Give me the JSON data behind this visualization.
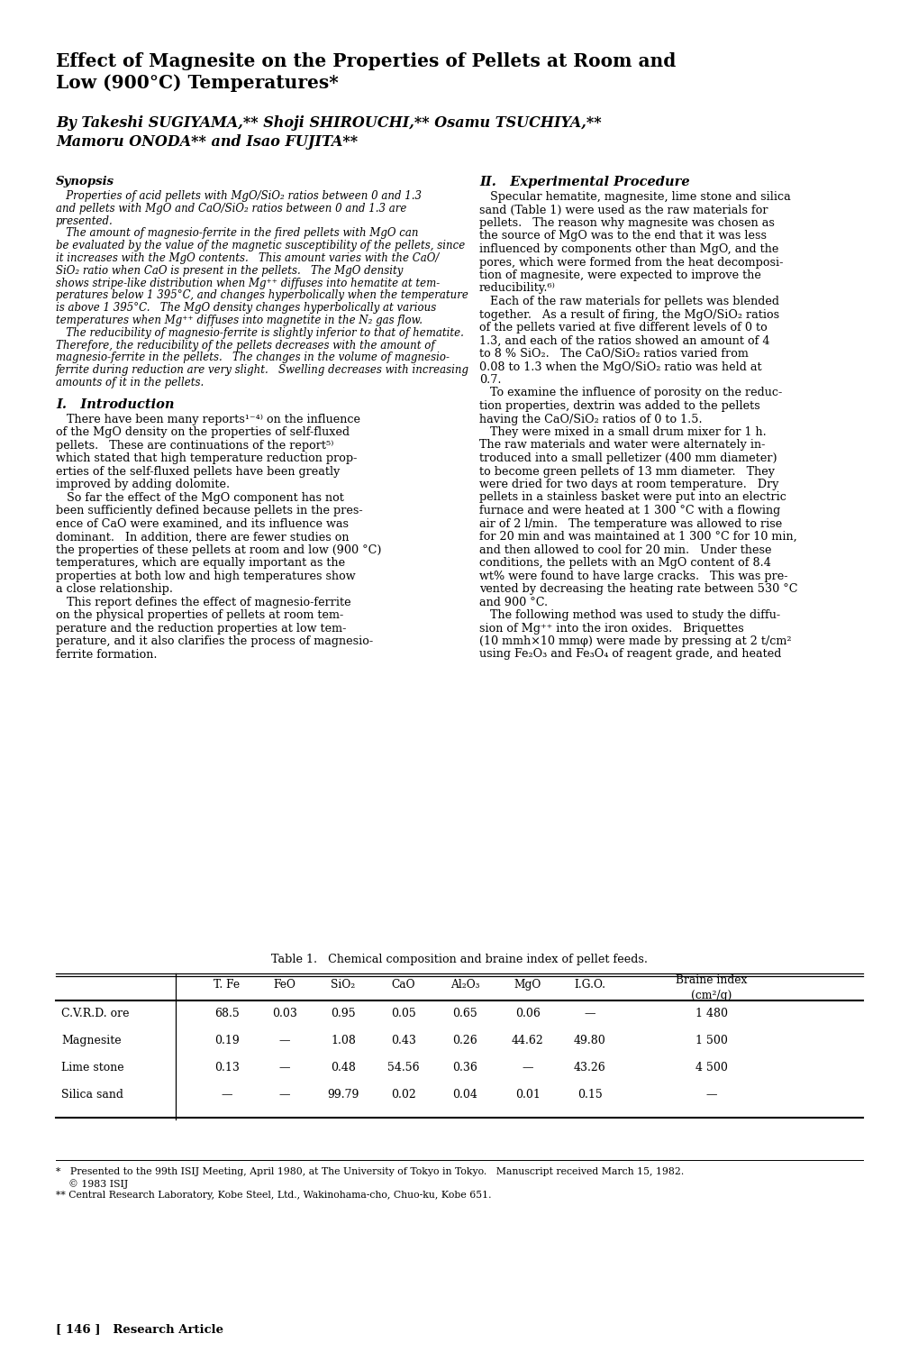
{
  "title_line1": "Effect of Magnesite on the Properties of Pellets at Room and",
  "title_line2": "Low (900°C) Temperatures*",
  "authors_line1": "By Takeshi SUGIYAMA,** Shoji SHIROUCHI,** Osamu TSUCHIYA,**",
  "authors_line2": "Mamoru ONODA** and Isao FUJITA**",
  "synopsis_title": "Synopsis",
  "synopsis_lines": [
    "   Properties of acid pellets with MgO/SiO₂ ratios between 0 and 1.3",
    "and pellets with MgO and CaO/SiO₂ ratios between 0 and 1.3 are",
    "presented.",
    "   The amount of magnesio-ferrite in the fired pellets with MgO can",
    "be evaluated by the value of the magnetic susceptibility of the pellets, since",
    "it increases with the MgO contents.   This amount varies with the CaO/",
    "SiO₂ ratio when CaO is present in the pellets.   The MgO density",
    "shows stripe-like distribution when Mg⁺⁺ diffuses into hematite at tem-",
    "peratures below 1 395°C, and changes hyperbolically when the temperature",
    "is above 1 395°C.   The MgO density changes hyperbolically at various",
    "temperatures when Mg⁺⁺ diffuses into magnetite in the N₂ gas flow.",
    "   The reducibility of magnesio-ferrite is slightly inferior to that of hematite.",
    "Therefore, the reducibility of the pellets decreases with the amount of",
    "magnesio-ferrite in the pellets.   The changes in the volume of magnesio-",
    "ferrite during reduction are very slight.   Swelling decreases with increasing",
    "amounts of it in the pellets."
  ],
  "sec1_title": "I.   Introduction",
  "sec1_lines": [
    "   There have been many reports¹⁻⁴⁾ on the influence",
    "of the MgO density on the properties of self-fluxed",
    "pellets.   These are continuations of the report⁵⁾",
    "which stated that high temperature reduction prop-",
    "erties of the self-fluxed pellets have been greatly",
    "improved by adding dolomite.",
    "   So far the effect of the MgO component has not",
    "been sufficiently defined because pellets in the pres-",
    "ence of CaO were examined, and its influence was",
    "dominant.   In addition, there are fewer studies on",
    "the properties of these pellets at room and low (900 °C)",
    "temperatures, which are equally important as the",
    "properties at both low and high temperatures show",
    "a close relationship.",
    "   This report defines the effect of magnesio-ferrite",
    "on the physical properties of pellets at room tem-",
    "perature and the reduction properties at low tem-",
    "perature, and it also clarifies the process of magnesio-",
    "ferrite formation."
  ],
  "sec2_title": "II.   Experimental Procedure",
  "sec2_lines": [
    "   Specular hematite, magnesite, lime stone and silica",
    "sand (Table 1) were used as the raw materials for",
    "pellets.   The reason why magnesite was chosen as",
    "the source of MgO was to the end that it was less",
    "influenced by components other than MgO, and the",
    "pores, which were formed from the heat decomposi-",
    "tion of magnesite, were expected to improve the",
    "reducibility.⁶⁾",
    "   Each of the raw materials for pellets was blended",
    "together.   As a result of firing, the MgO/SiO₂ ratios",
    "of the pellets varied at five different levels of 0 to",
    "1.3, and each of the ratios showed an amount of 4",
    "to 8 % SiO₂.   The CaO/SiO₂ ratios varied from",
    "0.08 to 1.3 when the MgO/SiO₂ ratio was held at",
    "0.7.",
    "   To examine the influence of porosity on the reduc-",
    "tion properties, dextrin was added to the pellets",
    "having the CaO/SiO₂ ratios of 0 to 1.5.",
    "   They were mixed in a small drum mixer for 1 h.",
    "The raw materials and water were alternately in-",
    "troduced into a small pelletizer (400 mm diameter)",
    "to become green pellets of 13 mm diameter.   They",
    "were dried for two days at room temperature.   Dry",
    "pellets in a stainless basket were put into an electric",
    "furnace and were heated at 1 300 °C with a flowing",
    "air of 2 l/min.   The temperature was allowed to rise",
    "for 20 min and was maintained at 1 300 °C for 10 min,",
    "and then allowed to cool for 20 min.   Under these",
    "conditions, the pellets with an MgO content of 8.4",
    "wt% were found to have large cracks.   This was pre-",
    "vented by decreasing the heating rate between 530 °C",
    "and 900 °C.",
    "   The following method was used to study the diffu-",
    "sion of Mg⁺⁺ into the iron oxides.   Briquettes",
    "(10 mmh×10 mmφ) were made by pressing at 2 t/cm²",
    "using Fe₂O₃ and Fe₃O₄ of reagent grade, and heated"
  ],
  "table_title": "Table 1.   Chemical composition and braine index of pellet feeds.",
  "table_col_headers": [
    "T. Fe",
    "FeO",
    "SiO₂",
    "CaO",
    "Al₂O₃",
    "MgO",
    "I.G.O.",
    "Braine index\n(cm²/g)"
  ],
  "table_rows": [
    [
      "C.V.R.D. ore",
      "68.5",
      "0.03",
      "0.95",
      "0.05",
      "0.65",
      "0.06",
      "—",
      "1 480"
    ],
    [
      "Magnesite",
      "0.19",
      "—",
      "1.08",
      "0.43",
      "0.26",
      "44.62",
      "49.80",
      "1 500"
    ],
    [
      "Lime stone",
      "0.13",
      "—",
      "0.48",
      "54.56",
      "0.36",
      "—",
      "43.26",
      "4 500"
    ],
    [
      "Silica sand",
      "—",
      "—",
      "99.79",
      "0.02",
      "0.04",
      "0.01",
      "0.15",
      "—"
    ]
  ],
  "footnote1": "*   Presented to the 99th ISIJ Meeting, April 1980, at The University of Tokyo in Tokyo.   Manuscript received March 15, 1982.",
  "footnote2": "    © 1983 ISIJ",
  "footnote3": "** Central Research Laboratory, Kobe Steel, Ltd., Wakinohama-cho, Chuo-ku, Kobe 651.",
  "page_label": "[ 146 ]   Research Article"
}
